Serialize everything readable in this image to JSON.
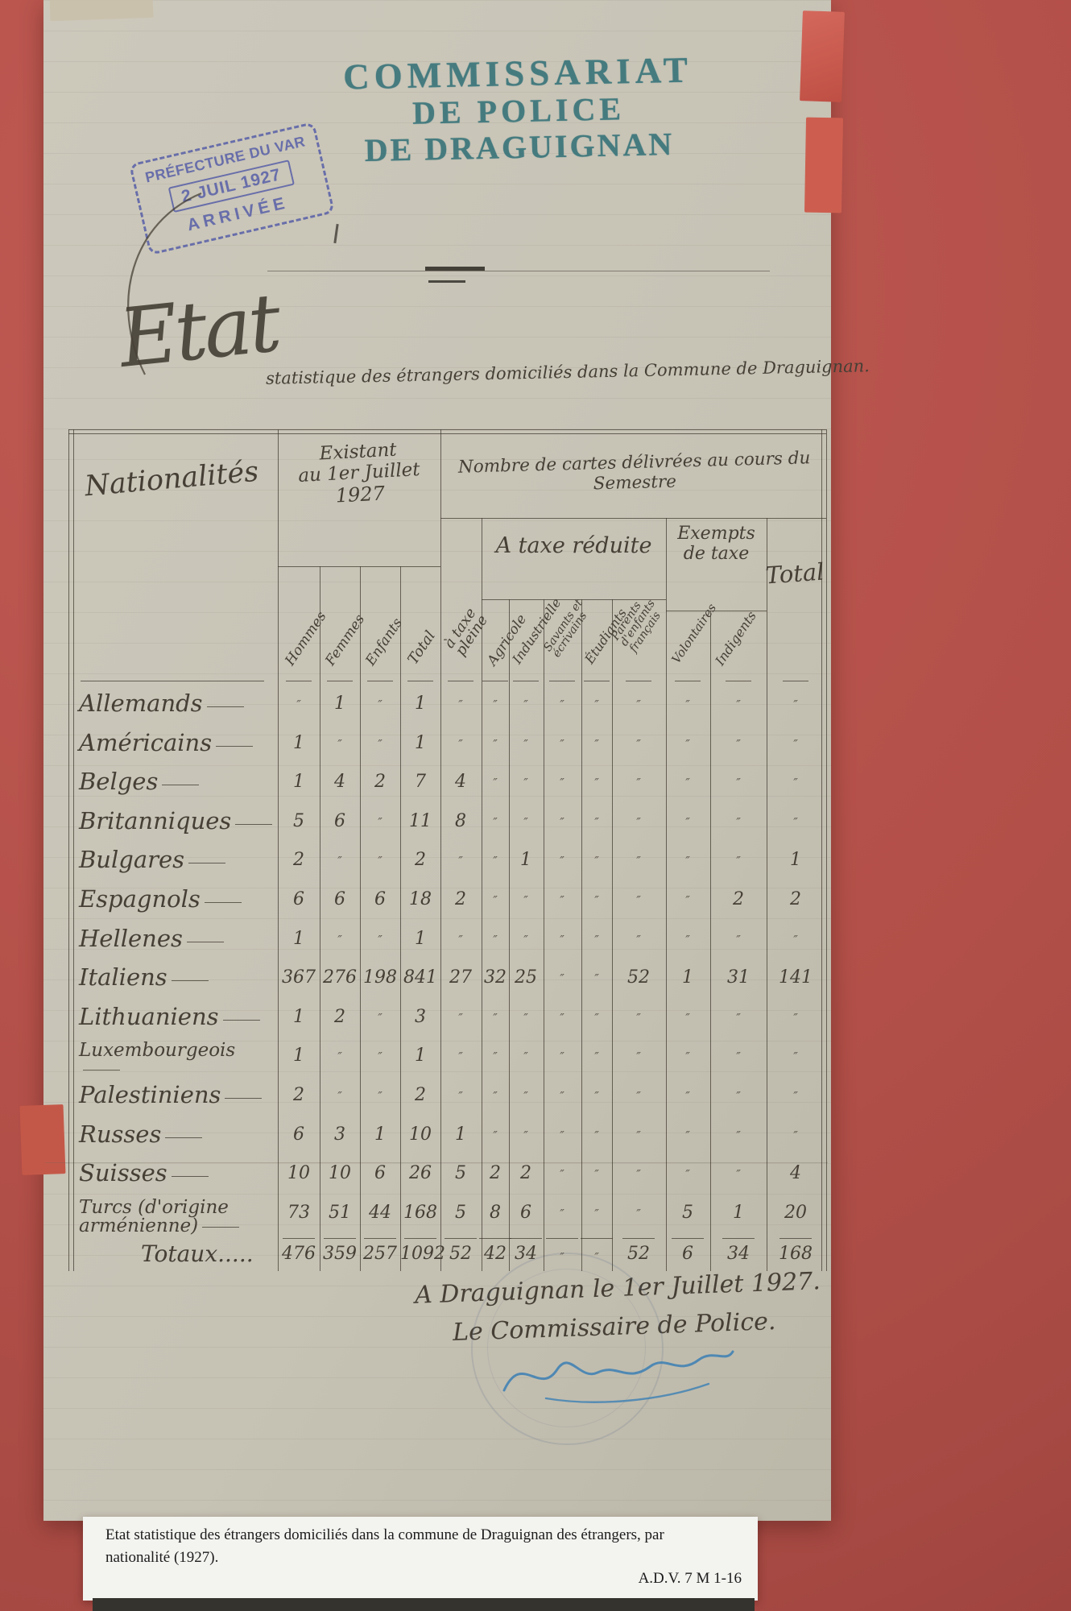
{
  "photo": {
    "caption_line1": "Etat statistique des étrangers domiciliés dans la commune de Draguignan des étrangers, par",
    "caption_line2": "nationalité (1927).",
    "reference": "A.D.V. 7 M 1-16"
  },
  "stamps": {
    "commissariat_line1": "COMMISSARIAT",
    "commissariat_line2": "DE POLICE",
    "commissariat_line3": "DE DRAGUIGNAN",
    "prefecture_top": "PRÉFECTURE DU VAR",
    "prefecture_date": "2 JUIL 1927",
    "prefecture_bottom": "ARRIVÉE"
  },
  "title": {
    "big_word": "Etat",
    "subtitle": "statistique des étrangers domiciliés dans la Commune de Draguignan."
  },
  "table": {
    "headers": {
      "nationalities": "Nationalités",
      "existing_l1": "Existant",
      "existing_l2": "au 1er Juillet",
      "existing_l3": "1927",
      "cards_group": "Nombre de cartes délivrées au cours du Semestre",
      "reduced_tax_group": "A taxe réduite",
      "exempt_l1": "Exempts",
      "exempt_l2": "de taxe"
    },
    "column_labels": [
      "Hommes",
      "Femmes",
      "Enfants",
      "Total",
      "à taxe pleine",
      "Agricole",
      "Industrielle",
      "Savants et écrivains",
      "Étudiants",
      "Parents d'enfants français",
      "Volontaires",
      "Indigents",
      "Total"
    ],
    "rows": [
      {
        "name": "Allemands",
        "values": [
          "″",
          "1",
          "″",
          "1",
          "″",
          "″",
          "″",
          "″",
          "″",
          "″",
          "″",
          "″",
          "″"
        ]
      },
      {
        "name": "Américains",
        "values": [
          "1",
          "″",
          "″",
          "1",
          "″",
          "″",
          "″",
          "″",
          "″",
          "″",
          "″",
          "″",
          "″"
        ]
      },
      {
        "name": "Belges",
        "values": [
          "1",
          "4",
          "2",
          "7",
          "4",
          "″",
          "″",
          "″",
          "″",
          "″",
          "″",
          "″",
          "″"
        ]
      },
      {
        "name": "Britanniques",
        "values": [
          "5",
          "6",
          "″",
          "11",
          "8",
          "″",
          "″",
          "″",
          "″",
          "″",
          "″",
          "″",
          "″"
        ]
      },
      {
        "name": "Bulgares",
        "values": [
          "2",
          "″",
          "″",
          "2",
          "″",
          "″",
          "1",
          "″",
          "″",
          "″",
          "″",
          "″",
          "1"
        ]
      },
      {
        "name": "Espagnols",
        "values": [
          "6",
          "6",
          "6",
          "18",
          "2",
          "″",
          "″",
          "″",
          "″",
          "″",
          "″",
          "2",
          "2"
        ]
      },
      {
        "name": "Hellenes",
        "values": [
          "1",
          "″",
          "″",
          "1",
          "″",
          "″",
          "″",
          "″",
          "″",
          "″",
          "″",
          "″",
          "″"
        ]
      },
      {
        "name": "Italiens",
        "values": [
          "367",
          "276",
          "198",
          "841",
          "27",
          "32",
          "25",
          "″",
          "″",
          "52",
          "1",
          "31",
          "141"
        ]
      },
      {
        "name": "Lithuaniens",
        "values": [
          "1",
          "2",
          "″",
          "3",
          "″",
          "″",
          "″",
          "″",
          "″",
          "″",
          "″",
          "″",
          "″"
        ]
      },
      {
        "name": "Luxembourgeois",
        "values": [
          "1",
          "″",
          "″",
          "1",
          "″",
          "″",
          "″",
          "″",
          "″",
          "″",
          "″",
          "″",
          "″"
        ]
      },
      {
        "name": "Palestiniens",
        "values": [
          "2",
          "″",
          "″",
          "2",
          "″",
          "″",
          "″",
          "″",
          "″",
          "″",
          "″",
          "″",
          "″"
        ]
      },
      {
        "name": "Russes",
        "values": [
          "6",
          "3",
          "1",
          "10",
          "1",
          "″",
          "″",
          "″",
          "″",
          "″",
          "″",
          "″",
          "″"
        ]
      },
      {
        "name": "Suisses",
        "values": [
          "10",
          "10",
          "6",
          "26",
          "5",
          "2",
          "2",
          "″",
          "″",
          "″",
          "″",
          "″",
          "4"
        ]
      },
      {
        "name": "Turcs (d'origine arménienne)",
        "values": [
          "73",
          "51",
          "44",
          "168",
          "5",
          "8",
          "6",
          "″",
          "″",
          "″",
          "5",
          "1",
          "20"
        ]
      }
    ],
    "totals": {
      "label": "Totaux.....",
      "values": [
        "476",
        "359",
        "257",
        "1092",
        "52",
        "42",
        "34",
        "″",
        "″",
        "52",
        "6",
        "34",
        "168"
      ]
    }
  },
  "closing": {
    "line1": "A Draguignan le 1er Juillet 1927.",
    "line2": "Le Commissaire de Police."
  },
  "colors": {
    "mat_red": "#b35049",
    "paper": "#c8c4b6",
    "ink": "#453f35",
    "stamp_teal": "#2f6f76",
    "stamp_violet": "#5b62a8",
    "signature_blue": "#3b7fb4"
  }
}
